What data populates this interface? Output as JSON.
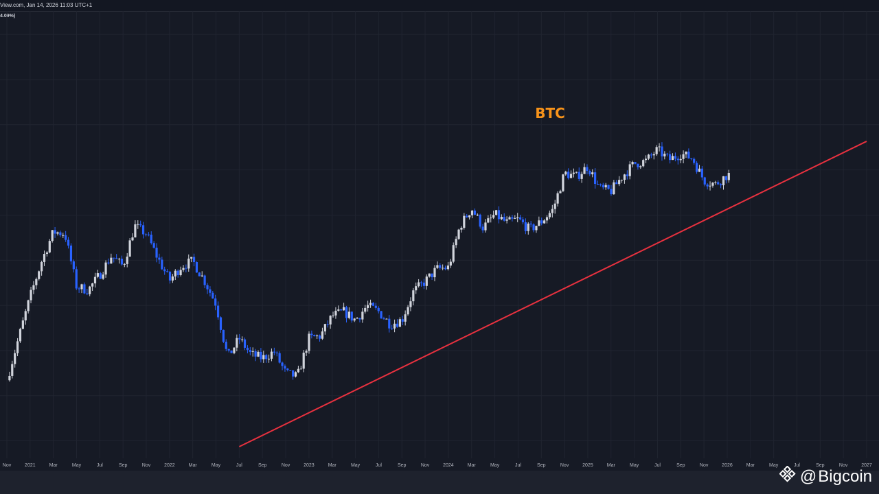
{
  "header": {
    "source_line": "View.com, Jan 14, 2026 11:03 UTC+1",
    "ohlc_fragment": "4.09%)"
  },
  "watermark": {
    "logo_icon": "bigcoin-diamond-icon",
    "at": "@",
    "text": "Bigcoin"
  },
  "colors": {
    "background": "#161a25",
    "grid": "#202430",
    "up_candle": "#d1d4dc",
    "down_candle": "#2962ff",
    "trendline": "#e8313f",
    "ticker": "#f7931a"
  },
  "chart_data": {
    "type": "candlestick",
    "title": "BTC",
    "interval": "weekly",
    "scale": "log",
    "grid": true,
    "x_range": [
      "2020-11",
      "2027-01"
    ],
    "x_ticks": [
      "Nov",
      "2021",
      "Mar",
      "May",
      "Jul",
      "Sep",
      "Nov",
      "2022",
      "Mar",
      "May",
      "Jul",
      "Sep",
      "Nov",
      "2023",
      "Mar",
      "May",
      "Jul",
      "Sep",
      "Nov",
      "2024",
      "Mar",
      "May",
      "Jul",
      "Sep",
      "Nov",
      "2025",
      "Mar",
      "May",
      "Jul",
      "Sep",
      "Nov",
      "2026",
      "Mar",
      "May",
      "Jul",
      "Sep",
      "Nov",
      "2027"
    ],
    "close_path": [
      [
        "2020-11",
        16000
      ],
      [
        "2020-12",
        23000
      ],
      [
        "2021-01",
        33000
      ],
      [
        "2021-02",
        45000
      ],
      [
        "2021-03",
        58000
      ],
      [
        "2021-04",
        57000
      ],
      [
        "2021-05",
        36000
      ],
      [
        "2021-06",
        35000
      ],
      [
        "2021-07",
        40000
      ],
      [
        "2021-08",
        47000
      ],
      [
        "2021-09",
        43000
      ],
      [
        "2021-10",
        61000
      ],
      [
        "2021-11",
        57000
      ],
      [
        "2021-12",
        46000
      ],
      [
        "2022-01",
        38000
      ],
      [
        "2022-02",
        43000
      ],
      [
        "2022-03",
        45000
      ],
      [
        "2022-04",
        38000
      ],
      [
        "2022-05",
        31000
      ],
      [
        "2022-06",
        19500
      ],
      [
        "2022-07",
        23000
      ],
      [
        "2022-08",
        20000
      ],
      [
        "2022-09",
        19400
      ],
      [
        "2022-10",
        20500
      ],
      [
        "2022-11",
        17000
      ],
      [
        "2022-12",
        16500
      ],
      [
        "2023-01",
        23000
      ],
      [
        "2023-02",
        23500
      ],
      [
        "2023-03",
        28000
      ],
      [
        "2023-04",
        29000
      ],
      [
        "2023-05",
        27000
      ],
      [
        "2023-06",
        30500
      ],
      [
        "2023-07",
        29000
      ],
      [
        "2023-08",
        26000
      ],
      [
        "2023-09",
        27000
      ],
      [
        "2023-10",
        34500
      ],
      [
        "2023-11",
        37700
      ],
      [
        "2023-12",
        42000
      ],
      [
        "2024-01",
        42500
      ],
      [
        "2024-02",
        61000
      ],
      [
        "2024-03",
        71000
      ],
      [
        "2024-04",
        60000
      ],
      [
        "2024-05",
        67500
      ],
      [
        "2024-06",
        62700
      ],
      [
        "2024-07",
        64600
      ],
      [
        "2024-08",
        59000
      ],
      [
        "2024-09",
        63300
      ],
      [
        "2024-10",
        70200
      ],
      [
        "2024-11",
        96400
      ],
      [
        "2024-12",
        93400
      ],
      [
        "2025-01",
        102400
      ],
      [
        "2025-02",
        84300
      ],
      [
        "2025-03",
        82500
      ],
      [
        "2025-04",
        94200
      ],
      [
        "2025-05",
        104600
      ],
      [
        "2025-06",
        107100
      ],
      [
        "2025-07",
        118000
      ],
      [
        "2025-08",
        108200
      ],
      [
        "2025-09",
        114000
      ],
      [
        "2025-10",
        109500
      ],
      [
        "2025-11",
        90500
      ],
      [
        "2025-12",
        87500
      ],
      [
        "2026-01",
        95000
      ]
    ],
    "trendline": {
      "color": "#e8313f",
      "from": [
        "2022-07",
        9000
      ],
      "to": [
        "2027-01",
        127000
      ]
    }
  }
}
